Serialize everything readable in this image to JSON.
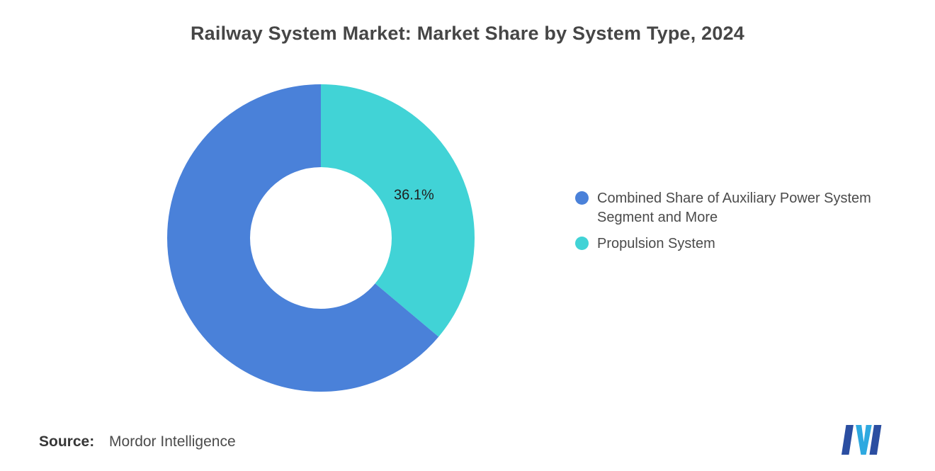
{
  "chart_data": {
    "type": "pie",
    "subtype": "donut",
    "title": "Railway System Market: Market Share by System Type, 2024",
    "segments": [
      {
        "label": "Combined Share of Auxiliary Power System Segment and More",
        "value": 63.9,
        "color": "#4A81D9"
      },
      {
        "label": "Propulsion System",
        "value": 36.1,
        "color": "#41D3D6"
      }
    ],
    "draw_order": [
      1,
      0
    ],
    "start_angle_deg": 0,
    "direction": "clockwise",
    "inner_radius_ratio": 0.46,
    "data_label": {
      "text": "36.1%",
      "segment_index": 1
    },
    "legend_position": "right"
  },
  "footer": {
    "source_label": "Source:",
    "source_value": "Mordor Intelligence"
  },
  "logo": {
    "name": "mordor-intelligence-logo",
    "colors": {
      "dark": "#2B4EA1",
      "light": "#2EA9E0"
    }
  }
}
